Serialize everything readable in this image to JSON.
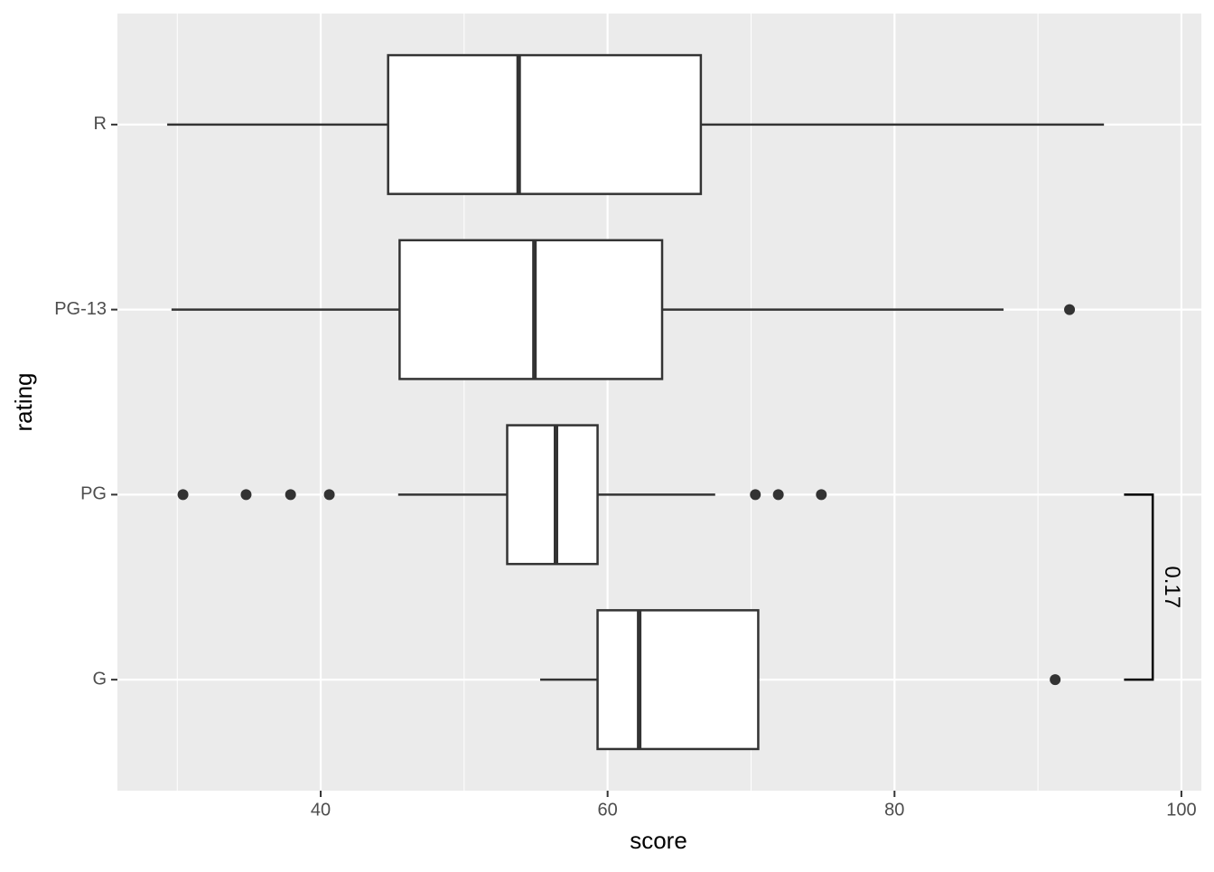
{
  "chart_data": {
    "type": "boxplot",
    "x_label": "score",
    "y_label": "rating",
    "categories": [
      "G",
      "PG",
      "PG-13",
      "R"
    ],
    "whisker_low": [
      55.3,
      45.4,
      29.6,
      29.3
    ],
    "q1": [
      59.3,
      53.0,
      45.5,
      44.7
    ],
    "median": [
      62.2,
      56.4,
      54.9,
      53.8
    ],
    "q3": [
      70.5,
      59.3,
      63.8,
      66.5
    ],
    "whisker_high": [
      70.5,
      67.5,
      87.6,
      94.6
    ],
    "outliers": [
      [
        91.2
      ],
      [
        30.4,
        34.8,
        37.9,
        40.6,
        70.3,
        71.9,
        74.9
      ],
      [
        92.2
      ],
      []
    ],
    "color": "#ffffff",
    "xlim": [
      25.83,
      101.39
    ],
    "xticks": [
      40,
      60,
      80,
      100
    ],
    "xminor": [
      30,
      50,
      70,
      90
    ],
    "grid": true,
    "annotations": [
      {
        "text": "0.17",
        "from": "PG",
        "to": "G",
        "x": [
          96,
          98
        ]
      }
    ]
  }
}
